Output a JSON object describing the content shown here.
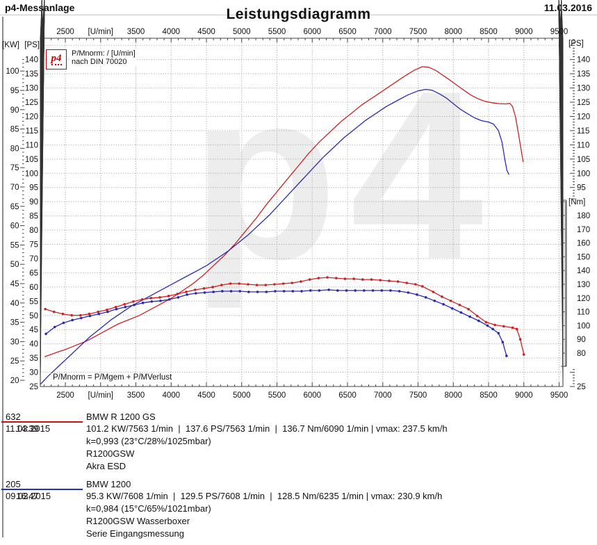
{
  "header": {
    "app_title": "p4-Messanlage",
    "date": "11.03.2016"
  },
  "chart": {
    "title": "Leistungsdiagramm",
    "watermark": "p4",
    "legend": {
      "logo_text": "p4",
      "line1": "P/Mnorm: / [U/min]",
      "line2": "nach DIN 70020"
    },
    "annotation": "P/Mnorm = P/Mgem + P/MVerlust",
    "axes": {
      "top_unit": "[U/min]",
      "left_unit_kw": "[KW]",
      "left_unit_ps": "[PS]",
      "right_unit_ps": "[PS]",
      "right_unit_nm": "[Nm]",
      "right_bottom_label": "25"
    }
  },
  "chart_data": {
    "type": "line",
    "xlabel": "[U/min]",
    "x_range": [
      2145,
      9550
    ],
    "ps_axis_range": [
      25,
      147.5
    ],
    "nm_axis_range": [
      70,
      191
    ],
    "grid": true,
    "x_ticks": [
      {
        "rpm": 2500,
        "label": "2500"
      },
      {
        "rpm": 3000,
        "label": "[U/min]"
      },
      {
        "rpm": 3500,
        "label": "3500"
      },
      {
        "rpm": 4000,
        "label": "4000"
      },
      {
        "rpm": 4500,
        "label": "4500"
      },
      {
        "rpm": 5000,
        "label": "5000"
      },
      {
        "rpm": 5500,
        "label": "5500"
      },
      {
        "rpm": 6000,
        "label": "6000"
      },
      {
        "rpm": 6500,
        "label": "6500"
      },
      {
        "rpm": 7000,
        "label": "7000"
      },
      {
        "rpm": 7500,
        "label": "7500"
      },
      {
        "rpm": 8000,
        "label": "8000"
      },
      {
        "rpm": 8500,
        "label": "8500"
      },
      {
        "rpm": 9000,
        "label": "9000"
      },
      {
        "rpm": 9500,
        "label": "9500"
      }
    ],
    "ps_ticks": [
      140,
      135,
      130,
      125,
      120,
      115,
      110,
      105,
      100,
      95,
      90,
      85,
      80,
      75,
      70,
      65,
      60,
      55,
      50,
      45,
      40,
      35,
      30,
      25
    ],
    "kw_ticks": [
      100,
      95,
      90,
      85,
      80,
      75,
      70,
      65,
      60,
      55,
      50,
      45,
      40,
      35,
      30,
      25,
      20
    ],
    "right_ps_ticks": [
      140,
      135,
      130,
      125,
      120,
      115,
      110,
      105,
      100,
      95
    ],
    "nm_ticks": [
      180,
      170,
      160,
      150,
      140,
      130,
      120,
      110,
      100,
      90,
      80
    ],
    "series": [
      {
        "id": "632-power",
        "axis": "ps",
        "color": "#cc2222",
        "marker": false,
        "points": [
          [
            2205,
            35.5
          ],
          [
            2300,
            36.3
          ],
          [
            2400,
            37.2
          ],
          [
            2500,
            38
          ],
          [
            2650,
            39.5
          ],
          [
            2800,
            41
          ],
          [
            2950,
            43
          ],
          [
            3100,
            45
          ],
          [
            3250,
            47
          ],
          [
            3400,
            48.5
          ],
          [
            3550,
            50
          ],
          [
            3700,
            52
          ],
          [
            3850,
            54
          ],
          [
            4000,
            56
          ],
          [
            4150,
            58.5
          ],
          [
            4300,
            61
          ],
          [
            4450,
            64
          ],
          [
            4600,
            67.5
          ],
          [
            4750,
            71
          ],
          [
            4900,
            75
          ],
          [
            5050,
            79.5
          ],
          [
            5200,
            84
          ],
          [
            5350,
            89
          ],
          [
            5500,
            93.5
          ],
          [
            5650,
            98
          ],
          [
            5800,
            102.5
          ],
          [
            5950,
            107
          ],
          [
            6100,
            111
          ],
          [
            6250,
            114.5
          ],
          [
            6400,
            118
          ],
          [
            6550,
            121
          ],
          [
            6700,
            124
          ],
          [
            6850,
            126.5
          ],
          [
            7000,
            129
          ],
          [
            7150,
            131.5
          ],
          [
            7300,
            134
          ],
          [
            7450,
            136.3
          ],
          [
            7563,
            137.5
          ],
          [
            7650,
            137.3
          ],
          [
            7750,
            136.2
          ],
          [
            7850,
            134.5
          ],
          [
            7950,
            132.8
          ],
          [
            8050,
            131
          ],
          [
            8150,
            129.2
          ],
          [
            8250,
            127.5
          ],
          [
            8350,
            126.2
          ],
          [
            8450,
            125.3
          ],
          [
            8550,
            124.8
          ],
          [
            8650,
            124.5
          ],
          [
            8750,
            124.4
          ],
          [
            8800,
            124.6
          ],
          [
            8840,
            123.5
          ],
          [
            8880,
            120
          ],
          [
            8920,
            114.5
          ],
          [
            8960,
            108.5
          ],
          [
            8990,
            104
          ]
        ]
      },
      {
        "id": "205-power",
        "axis": "ps",
        "color": "#2a2ab0",
        "marker": false,
        "points": [
          [
            2145,
            25.7
          ],
          [
            2250,
            28.5
          ],
          [
            2400,
            32
          ],
          [
            2550,
            35.5
          ],
          [
            2700,
            39
          ],
          [
            2850,
            42.5
          ],
          [
            3000,
            45.5
          ],
          [
            3150,
            48.5
          ],
          [
            3300,
            51
          ],
          [
            3450,
            53.5
          ],
          [
            3600,
            55.5
          ],
          [
            3750,
            57.5
          ],
          [
            3900,
            59.5
          ],
          [
            4050,
            61.5
          ],
          [
            4200,
            63.5
          ],
          [
            4350,
            65.5
          ],
          [
            4500,
            67.5
          ],
          [
            4650,
            70
          ],
          [
            4800,
            72.5
          ],
          [
            4950,
            75.5
          ],
          [
            5100,
            78.5
          ],
          [
            5250,
            82
          ],
          [
            5400,
            85.5
          ],
          [
            5550,
            89.5
          ],
          [
            5700,
            93.5
          ],
          [
            5850,
            97.5
          ],
          [
            6000,
            101.5
          ],
          [
            6150,
            105.5
          ],
          [
            6300,
            109
          ],
          [
            6450,
            112.5
          ],
          [
            6600,
            115.5
          ],
          [
            6750,
            118.5
          ],
          [
            6900,
            121
          ],
          [
            7050,
            123.5
          ],
          [
            7200,
            125.5
          ],
          [
            7350,
            127.5
          ],
          [
            7500,
            129
          ],
          [
            7608,
            129.5
          ],
          [
            7700,
            129.2
          ],
          [
            7800,
            128
          ],
          [
            7900,
            126.5
          ],
          [
            8000,
            124.5
          ],
          [
            8100,
            122.5
          ],
          [
            8200,
            121
          ],
          [
            8300,
            119.5
          ],
          [
            8400,
            118.5
          ],
          [
            8500,
            118
          ],
          [
            8570,
            117.3
          ],
          [
            8640,
            115
          ],
          [
            8690,
            111
          ],
          [
            8730,
            105
          ],
          [
            8760,
            101
          ],
          [
            8790,
            99.5
          ]
        ]
      },
      {
        "id": "632-torque",
        "axis": "nm",
        "color": "#cc2222",
        "marker": true,
        "points": [
          [
            2216,
            112
          ],
          [
            2340,
            110
          ],
          [
            2465,
            108.5
          ],
          [
            2590,
            107.5
          ],
          [
            2715,
            107.5
          ],
          [
            2840,
            108.5
          ],
          [
            2965,
            110
          ],
          [
            3090,
            111.5
          ],
          [
            3215,
            113.5
          ],
          [
            3340,
            115.5
          ],
          [
            3465,
            117.5
          ],
          [
            3590,
            119
          ],
          [
            3715,
            120
          ],
          [
            3840,
            120.5
          ],
          [
            3965,
            121.5
          ],
          [
            4090,
            123
          ],
          [
            4215,
            124.5
          ],
          [
            4340,
            126
          ],
          [
            4465,
            127
          ],
          [
            4590,
            128
          ],
          [
            4715,
            129.5
          ],
          [
            4840,
            130.5
          ],
          [
            4965,
            130.5
          ],
          [
            5090,
            130
          ],
          [
            5215,
            129.5
          ],
          [
            5340,
            129.5
          ],
          [
            5465,
            130
          ],
          [
            5590,
            130.5
          ],
          [
            5715,
            131
          ],
          [
            5840,
            132
          ],
          [
            5965,
            133.5
          ],
          [
            6090,
            134.5
          ],
          [
            6215,
            135
          ],
          [
            6340,
            134.5
          ],
          [
            6465,
            134
          ],
          [
            6590,
            134
          ],
          [
            6715,
            133.5
          ],
          [
            6840,
            133.5
          ],
          [
            6965,
            133
          ],
          [
            7090,
            132.5
          ],
          [
            7215,
            132
          ],
          [
            7340,
            131
          ],
          [
            7465,
            130
          ],
          [
            7563,
            128.5
          ],
          [
            7715,
            124.5
          ],
          [
            7840,
            121
          ],
          [
            7965,
            118
          ],
          [
            8090,
            115
          ],
          [
            8215,
            112
          ],
          [
            8340,
            107
          ],
          [
            8465,
            102.5
          ],
          [
            8590,
            100.5
          ],
          [
            8715,
            99.5
          ],
          [
            8840,
            98.5
          ],
          [
            8900,
            97.5
          ],
          [
            8950,
            90
          ],
          [
            9000,
            79
          ]
        ]
      },
      {
        "id": "205-torque",
        "axis": "nm",
        "color": "#2a2ab0",
        "marker": true,
        "points": [
          [
            2225,
            94
          ],
          [
            2350,
            99
          ],
          [
            2475,
            102
          ],
          [
            2600,
            104
          ],
          [
            2725,
            105.5
          ],
          [
            2850,
            107
          ],
          [
            2975,
            108.5
          ],
          [
            3100,
            110
          ],
          [
            3225,
            112
          ],
          [
            3350,
            113.5
          ],
          [
            3475,
            115
          ],
          [
            3600,
            116.5
          ],
          [
            3725,
            117.5
          ],
          [
            3850,
            118
          ],
          [
            3975,
            119
          ],
          [
            4100,
            120.5
          ],
          [
            4225,
            122.5
          ],
          [
            4350,
            123.5
          ],
          [
            4475,
            124
          ],
          [
            4600,
            124.5
          ],
          [
            4725,
            125
          ],
          [
            4850,
            125
          ],
          [
            4975,
            125
          ],
          [
            5100,
            124.5
          ],
          [
            5225,
            124.5
          ],
          [
            5350,
            124.5
          ],
          [
            5475,
            125
          ],
          [
            5600,
            125
          ],
          [
            5725,
            125
          ],
          [
            5850,
            125
          ],
          [
            5975,
            125.5
          ],
          [
            6100,
            125.5
          ],
          [
            6235,
            126
          ],
          [
            6360,
            125.5
          ],
          [
            6485,
            125.5
          ],
          [
            6610,
            125.5
          ],
          [
            6735,
            125.5
          ],
          [
            6860,
            125.5
          ],
          [
            6985,
            125.5
          ],
          [
            7110,
            125.5
          ],
          [
            7235,
            125
          ],
          [
            7360,
            124
          ],
          [
            7485,
            122.5
          ],
          [
            7610,
            120.5
          ],
          [
            7735,
            118
          ],
          [
            7860,
            115.5
          ],
          [
            7985,
            112.5
          ],
          [
            8110,
            109.5
          ],
          [
            8235,
            106.5
          ],
          [
            8360,
            103.5
          ],
          [
            8485,
            100
          ],
          [
            8560,
            97.5
          ],
          [
            8640,
            94.5
          ],
          [
            8700,
            88
          ],
          [
            8755,
            78
          ]
        ]
      }
    ]
  },
  "records": [
    {
      "id": "632",
      "vehicle": "BMW R 1200 GS",
      "date": "11.03.2015",
      "time": "14:39",
      "result": "101.2 KW/7563 1/min  |  137.6 PS/7563 1/min  |  136.7 Nm/6090 1/min | vmax: 237.5 km/h",
      "correction": "k=0,993 (23°C/28%/1025mbar)",
      "model": "R1200GSW",
      "note": "Akra ESD",
      "line_color": "#cc1111"
    },
    {
      "id": "205",
      "vehicle": "BMW 1200",
      "date": "09.03.2015",
      "time": "16:47",
      "result": "95.3 KW/7608 1/min  |  129.5 PS/7608 1/min  |  128.5 Nm/6235 1/min | vmax: 230.9 km/h",
      "correction": "k=0,984 (15°C/65%/1021mbar)",
      "model": "R1200GSW Wasserboxer",
      "note": "Serie Eingangsmessung",
      "line_color": "#2233bb"
    }
  ]
}
